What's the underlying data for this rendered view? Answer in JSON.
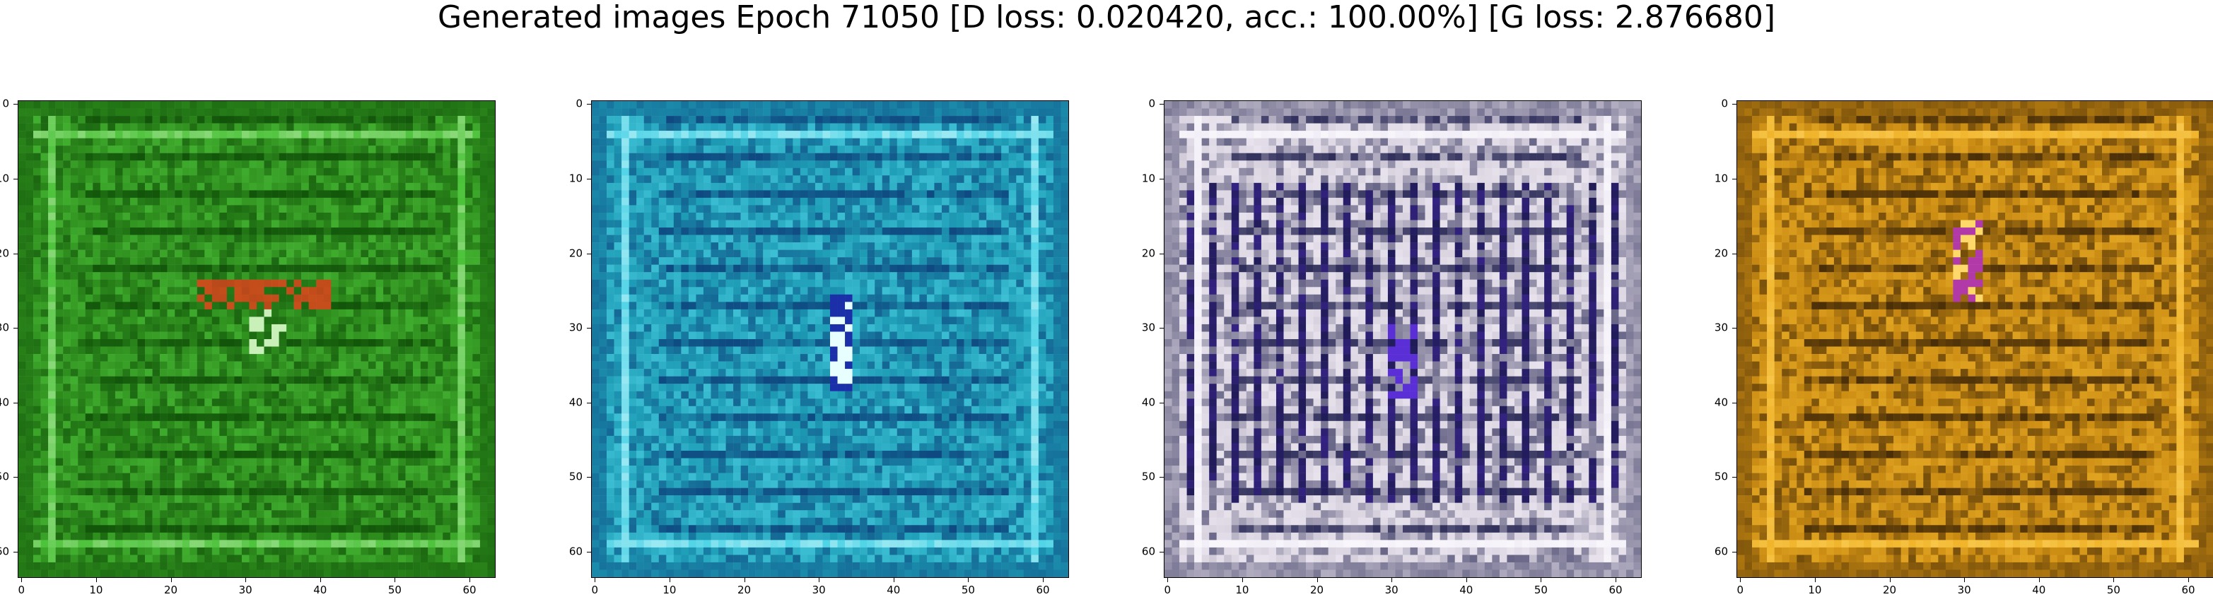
{
  "figure": {
    "title": "Generated images Epoch 71050 [D loss: 0.020420, acc.: 100.00%] [G loss: 2.876680]"
  },
  "panels": [
    {
      "name": "panel-1",
      "palette": {
        "base": "#2f8f1e",
        "light": "#4cc23a",
        "dark": "#0e4d07",
        "accent": "#d0521c",
        "hilite": "#c8f0b8"
      },
      "accent_label": "orange-red blob",
      "x_ticks": [
        "0",
        "10",
        "20",
        "30",
        "40",
        "50",
        "60"
      ],
      "y_ticks": [
        "0",
        "10",
        "20",
        "30",
        "40",
        "50",
        "60"
      ]
    },
    {
      "name": "panel-2",
      "palette": {
        "base": "#1f9fb8",
        "light": "#4fd3e6",
        "dark": "#0c3f7a",
        "accent": "#1a2fa8",
        "hilite": "#e8ffff"
      },
      "accent_label": "dark blue streak",
      "x_ticks": [
        "0",
        "10",
        "20",
        "30",
        "40",
        "50",
        "60"
      ],
      "y_ticks": [
        "0",
        "10",
        "20",
        "30",
        "40",
        "50",
        "60"
      ]
    },
    {
      "name": "panel-3",
      "palette": {
        "base": "#d9d3df",
        "light": "#f2eef7",
        "dark": "#1a1a4a",
        "accent": "#5b2fd6",
        "hilite": "#ffffff"
      },
      "accent_label": "dark vertical bars",
      "x_ticks": [
        "0",
        "10",
        "20",
        "30",
        "40",
        "50",
        "60"
      ],
      "y_ticks": [
        "0",
        "10",
        "20",
        "30",
        "40",
        "50",
        "60"
      ]
    },
    {
      "name": "panel-4",
      "palette": {
        "base": "#c98a12",
        "light": "#f0b42a",
        "dark": "#3a2306",
        "accent": "#b23aa8",
        "hilite": "#ffd86a"
      },
      "accent_label": "magenta streak",
      "x_ticks": [
        "0",
        "10",
        "20",
        "30",
        "40",
        "50",
        "60"
      ],
      "y_ticks": [
        "0",
        "10",
        "20",
        "30",
        "40",
        "50",
        "60"
      ]
    }
  ]
}
